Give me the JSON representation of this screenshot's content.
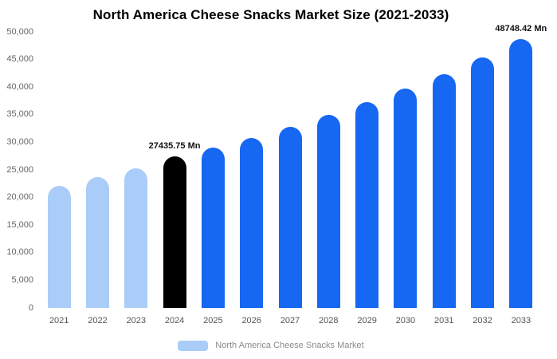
{
  "title": "North America Cheese Snacks Market Size (2021-2033)",
  "legend": {
    "label": "North America Cheese Snacks Market",
    "swatch_color": "#A9CDF8"
  },
  "chart_data": {
    "type": "bar",
    "title": "North America Cheese Snacks Market Size (2021-2033)",
    "categories": [
      "2021",
      "2022",
      "2023",
      "2024",
      "2025",
      "2026",
      "2027",
      "2028",
      "2029",
      "2030",
      "2031",
      "2032",
      "2033"
    ],
    "values": [
      22100,
      23700,
      25300,
      27435.75,
      29000,
      30800,
      32800,
      35000,
      37300,
      39700,
      42300,
      45400,
      48748.42
    ],
    "unit": "Mn",
    "xlabel": "",
    "ylabel": "",
    "ylim": [
      0,
      50000
    ],
    "ytick_labels": [
      "0",
      "5,000",
      "10,000",
      "15,000",
      "20,000",
      "25,000",
      "30,000",
      "35,000",
      "40,000",
      "45,000",
      "50,000"
    ],
    "grid": false,
    "legend_position": "bottom",
    "colors": [
      "#A9CDF8",
      "#A9CDF8",
      "#A9CDF8",
      "#000000",
      "#1667F2",
      "#1667F2",
      "#1667F2",
      "#1667F2",
      "#1667F2",
      "#1667F2",
      "#1667F2",
      "#1667F2",
      "#1667F2"
    ],
    "color_legend": {
      "historical": "#A9CDF8",
      "base_year": "#000000",
      "forecast": "#1667F2"
    },
    "annotations": [
      {
        "index": 3,
        "text": "27435.75 Mn"
      },
      {
        "index": 12,
        "text": "48748.42 Mn"
      }
    ]
  }
}
